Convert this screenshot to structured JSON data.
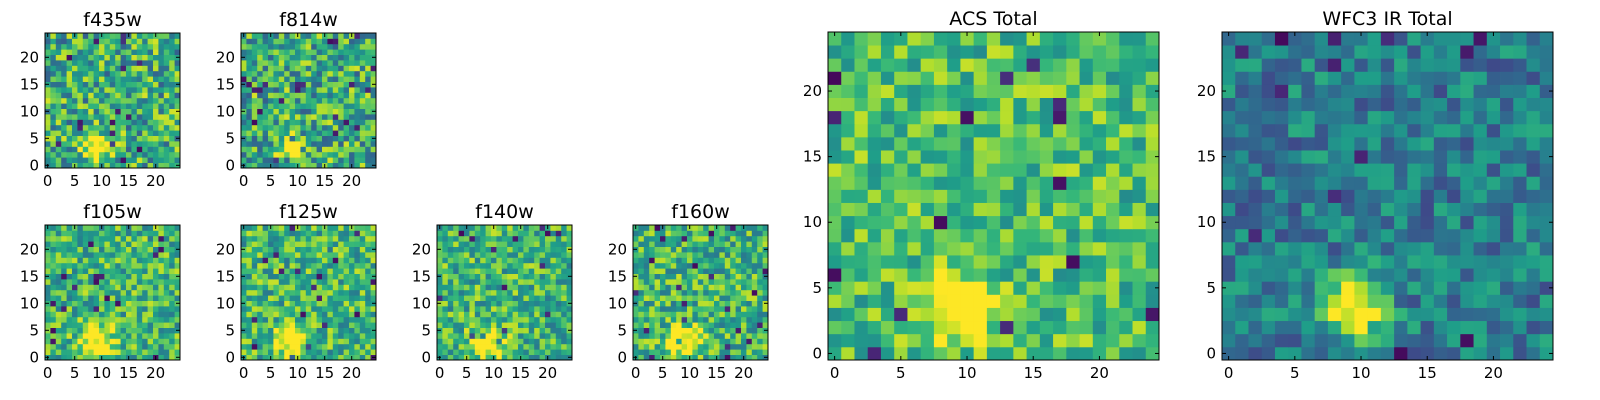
{
  "chart_data": [
    {
      "type": "heatmap",
      "title": "f435w",
      "x_ticks": [
        "0",
        "5",
        "10",
        "15",
        "20"
      ],
      "y_ticks": [
        "0",
        "5",
        "10",
        "15",
        "20"
      ],
      "xlim": [
        -0.5,
        24.5
      ],
      "ylim": [
        -0.5,
        24.5
      ],
      "grid_size": 25,
      "colormap": "viridis",
      "seed": 11,
      "blob": {
        "x": 9,
        "y": 3,
        "r": 2.2,
        "amp": 0.7
      },
      "base": 0.62,
      "spread": 0.32
    },
    {
      "type": "heatmap",
      "title": "f814w",
      "x_ticks": [
        "0",
        "5",
        "10",
        "15",
        "20"
      ],
      "y_ticks": [
        "0",
        "5",
        "10",
        "15",
        "20"
      ],
      "xlim": [
        -0.5,
        24.5
      ],
      "ylim": [
        -0.5,
        24.5
      ],
      "grid_size": 25,
      "colormap": "viridis",
      "seed": 23,
      "blob": {
        "x": 9,
        "y": 3,
        "r": 2.2,
        "amp": 0.7
      },
      "base": 0.62,
      "spread": 0.32
    },
    {
      "type": "heatmap",
      "title": "f105w",
      "x_ticks": [
        "0",
        "5",
        "10",
        "15",
        "20"
      ],
      "y_ticks": [
        "0",
        "5",
        "10",
        "15",
        "20"
      ],
      "xlim": [
        -0.5,
        24.5
      ],
      "ylim": [
        -0.5,
        24.5
      ],
      "grid_size": 25,
      "colormap": "viridis",
      "seed": 37,
      "blob": {
        "x": 9,
        "y": 3,
        "r": 3.0,
        "amp": 0.5
      },
      "base": 0.66,
      "spread": 0.26
    },
    {
      "type": "heatmap",
      "title": "f125w",
      "x_ticks": [
        "0",
        "5",
        "10",
        "15",
        "20"
      ],
      "y_ticks": [
        "0",
        "5",
        "10",
        "15",
        "20"
      ],
      "xlim": [
        -0.5,
        24.5
      ],
      "ylim": [
        -0.5,
        24.5
      ],
      "grid_size": 25,
      "colormap": "viridis",
      "seed": 41,
      "blob": {
        "x": 9,
        "y": 3,
        "r": 3.0,
        "amp": 0.5
      },
      "base": 0.66,
      "spread": 0.26
    },
    {
      "type": "heatmap",
      "title": "f140w",
      "x_ticks": [
        "0",
        "5",
        "10",
        "15",
        "20"
      ],
      "y_ticks": [
        "0",
        "5",
        "10",
        "15",
        "20"
      ],
      "xlim": [
        -0.5,
        24.5
      ],
      "ylim": [
        -0.5,
        24.5
      ],
      "grid_size": 25,
      "colormap": "viridis",
      "seed": 53,
      "blob": {
        "x": 9,
        "y": 3,
        "r": 3.0,
        "amp": 0.5
      },
      "base": 0.66,
      "spread": 0.26
    },
    {
      "type": "heatmap",
      "title": "f160w",
      "x_ticks": [
        "0",
        "5",
        "10",
        "15",
        "20"
      ],
      "y_ticks": [
        "0",
        "5",
        "10",
        "15",
        "20"
      ],
      "xlim": [
        -0.5,
        24.5
      ],
      "ylim": [
        -0.5,
        24.5
      ],
      "grid_size": 25,
      "colormap": "viridis",
      "seed": 67,
      "blob": {
        "x": 9,
        "y": 3,
        "r": 3.0,
        "amp": 0.5
      },
      "base": 0.66,
      "spread": 0.26
    },
    {
      "type": "heatmap",
      "title": "ACS Total",
      "x_ticks": [
        "0",
        "5",
        "10",
        "15",
        "20"
      ],
      "y_ticks": [
        "0",
        "5",
        "10",
        "15",
        "20"
      ],
      "xlim": [
        -0.5,
        24.5
      ],
      "ylim": [
        -0.5,
        24.5
      ],
      "grid_size": 25,
      "colormap": "viridis",
      "seed": 79,
      "blob": {
        "x": 9.5,
        "y": 3.5,
        "r": 2.4,
        "amp": 0.6
      },
      "base": 0.7,
      "spread": 0.22
    },
    {
      "type": "heatmap",
      "title": "WFC3 IR Total",
      "x_ticks": [
        "0",
        "5",
        "10",
        "15",
        "20"
      ],
      "y_ticks": [
        "0",
        "5",
        "10",
        "15",
        "20"
      ],
      "xlim": [
        -0.5,
        24.5
      ],
      "ylim": [
        -0.5,
        24.5
      ],
      "grid_size": 25,
      "colormap": "viridis",
      "seed": 97,
      "blob": {
        "x": 9.5,
        "y": 3.5,
        "r": 2.3,
        "amp": 0.75
      },
      "base": 0.42,
      "spread": 0.2
    }
  ]
}
